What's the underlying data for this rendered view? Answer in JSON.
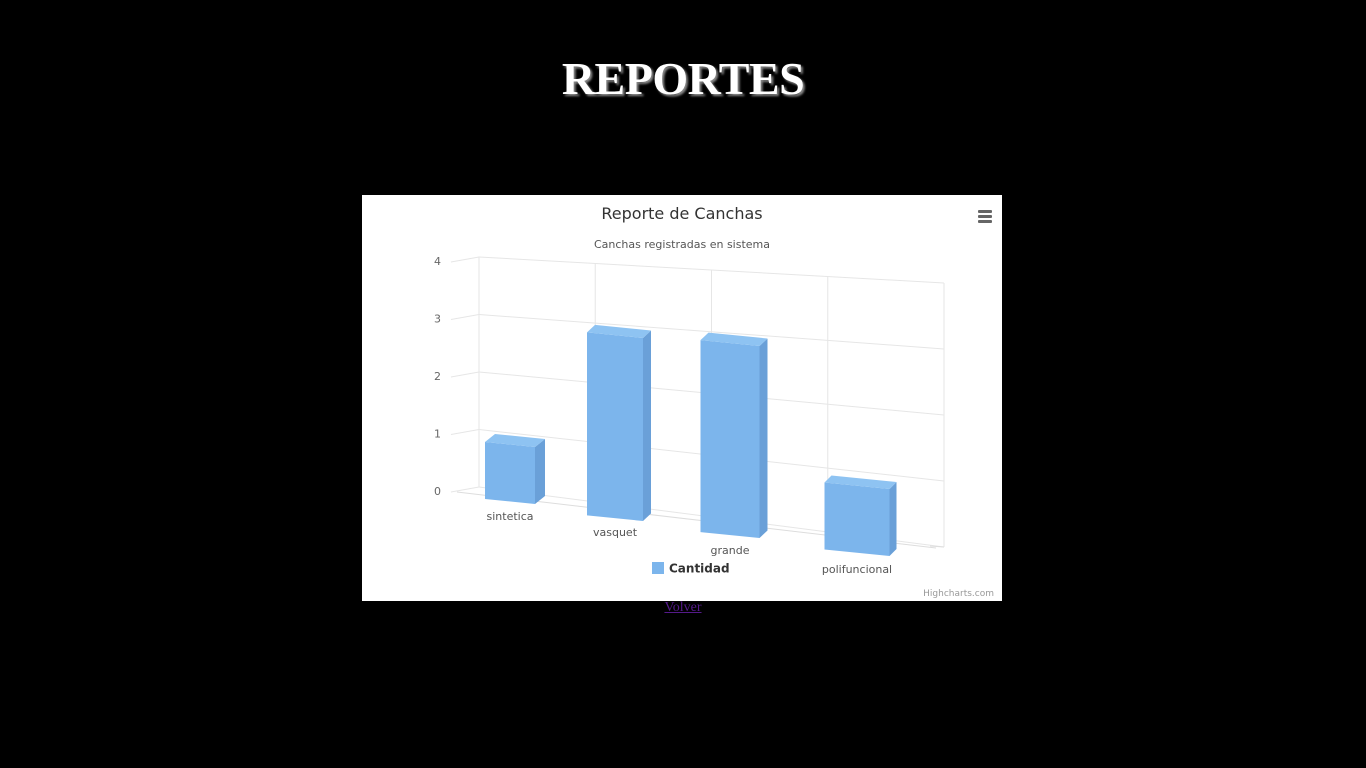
{
  "page": {
    "title": "REPORTES",
    "back_link": "Volver"
  },
  "chart_data": {
    "type": "bar",
    "title": "Reporte de Canchas",
    "subtitle": "Canchas registradas en sistema",
    "categories": [
      "sintetica",
      "vasquet",
      "grande",
      "polifuncional"
    ],
    "series": [
      {
        "name": "Cantidad",
        "values": [
          1,
          3,
          3,
          1
        ],
        "color": "#7cb5ec"
      }
    ],
    "ylim": [
      0,
      4
    ],
    "yticks": [
      0,
      1,
      2,
      3,
      4
    ],
    "grid": true,
    "legend": "bottom-center",
    "credits": "Highcharts.com"
  }
}
